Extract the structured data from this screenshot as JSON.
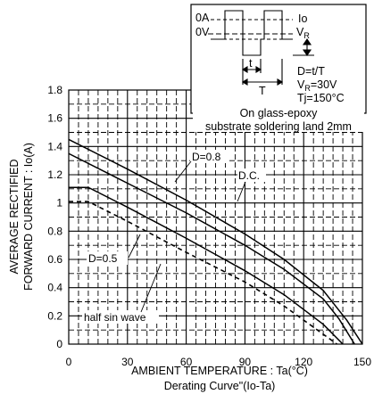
{
  "chart_data": {
    "type": "line",
    "xlabel": "AMBIENT TEMPERATURE : Ta(°C)",
    "caption": "Derating Curve\"(Io-Ta)",
    "ylabel_line1": "AVERAGE RECTIFIED",
    "ylabel_line2": "FORWARD CURRENT : Io(A)",
    "xlim": [
      0,
      150
    ],
    "ylim": [
      0,
      1.8
    ],
    "xticks": [
      "0",
      "30",
      "60",
      "90",
      "120",
      "150"
    ],
    "yticks": [
      "0",
      "0.2",
      "0.4",
      "0.6",
      "0.8",
      "1",
      "1.2",
      "1.4",
      "1.6",
      "1.8"
    ],
    "grid": true,
    "series": [
      {
        "name": "D=0.8",
        "style": "solid",
        "x": [
          0,
          30,
          60,
          90,
          110,
          130,
          142,
          150
        ],
        "y": [
          1.45,
          1.24,
          1.02,
          0.78,
          0.6,
          0.38,
          0.17,
          0
        ]
      },
      {
        "name": "D.C.",
        "style": "solid",
        "x": [
          0,
          30,
          60,
          90,
          110,
          130,
          138,
          146
        ],
        "y": [
          1.35,
          1.14,
          0.93,
          0.7,
          0.53,
          0.32,
          0.18,
          0
        ]
      },
      {
        "name": "D=0.5",
        "style": "solid",
        "x": [
          0,
          10,
          30,
          60,
          90,
          110,
          130,
          140
        ],
        "y": [
          1.11,
          1.11,
          0.97,
          0.75,
          0.52,
          0.35,
          0.14,
          0
        ]
      },
      {
        "name": "half sin wave",
        "style": "dashed",
        "x": [
          0,
          10,
          30,
          60,
          90,
          110,
          130,
          137
        ],
        "y": [
          1.01,
          1.01,
          0.87,
          0.65,
          0.44,
          0.27,
          0.07,
          0
        ]
      }
    ],
    "annotations": {
      "d08": "D=0.8",
      "dc": "D.C.",
      "d05": "D=0.5",
      "half": "half sin wave"
    },
    "inset": {
      "io": "Io",
      "vr": "V",
      "vr_sub": "R",
      "zero_a": "0A",
      "zero_v": "0V",
      "t_small": "t",
      "t_big": "T",
      "d_eq": "D=t/T",
      "vr_eq": "V",
      "vr_eq_sub": "R",
      "vr_eq_val": "=30V",
      "tj": "Tj=150°C",
      "glass": "On glass-epoxy",
      "substrate": "substrate soldering land 2mm"
    }
  }
}
